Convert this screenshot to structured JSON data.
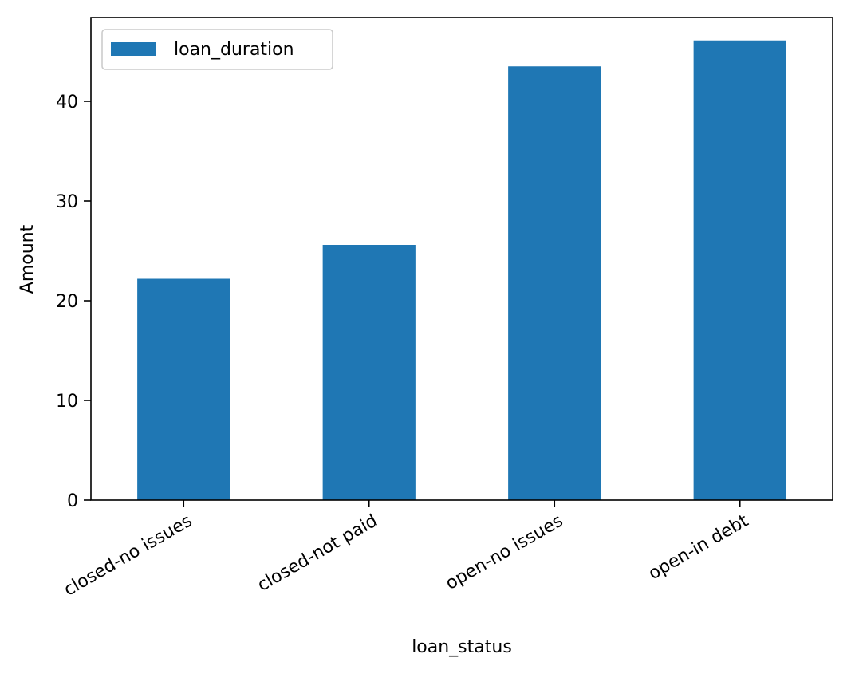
{
  "chart_data": {
    "type": "bar",
    "categories": [
      "closed-no issues",
      "closed-not paid",
      "open-no issues",
      "open-in debt"
    ],
    "series": [
      {
        "name": "loan_duration",
        "values": [
          22.2,
          25.6,
          43.5,
          46.1
        ],
        "color": "#1f77b4"
      }
    ],
    "title": "",
    "xlabel": "loan_status",
    "ylabel": "Amount",
    "ylim": [
      0,
      48.4
    ],
    "yticks": [
      0,
      10,
      20,
      30,
      40
    ],
    "xtick_rotation": 30,
    "legend": {
      "placement": "upper-left"
    },
    "grid": false
  }
}
